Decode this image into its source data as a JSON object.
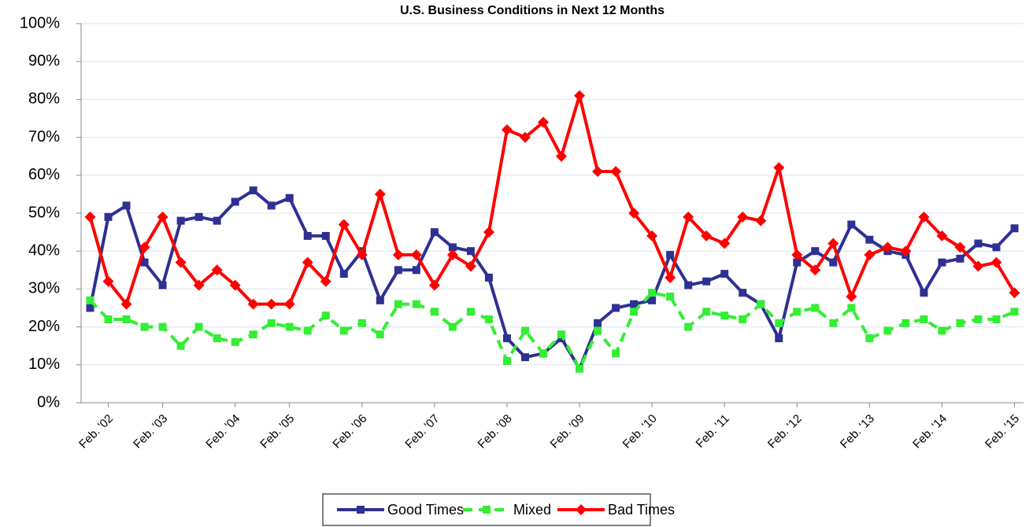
{
  "chart_data": {
    "type": "line",
    "title": "U.S. Business Conditions in Next 12 Months",
    "categories": [
      null,
      "Feb. '02",
      null,
      null,
      "Feb. '03",
      null,
      null,
      null,
      "Feb. '04",
      null,
      null,
      "Feb. '05",
      null,
      null,
      null,
      "Feb. '06",
      null,
      null,
      null,
      "Feb. '07",
      null,
      null,
      null,
      "Feb. '08",
      null,
      null,
      null,
      "Feb. '09",
      null,
      null,
      null,
      "Feb. '10",
      null,
      null,
      null,
      "Feb. '11",
      null,
      null,
      null,
      "Feb. '12",
      null,
      null,
      null,
      "Feb. '13",
      null,
      null,
      null,
      "Feb. '14",
      null,
      null,
      null,
      "Feb. '15"
    ],
    "series": [
      {
        "name": "Good Times",
        "color": "#2e3192",
        "marker": "square",
        "dashed": false,
        "values": [
          25,
          49,
          52,
          37,
          31,
          48,
          49,
          48,
          53,
          56,
          52,
          54,
          44,
          44,
          34,
          40,
          27,
          35,
          35,
          45,
          41,
          40,
          33,
          17,
          12,
          13,
          17,
          9,
          21,
          25,
          26,
          27,
          39,
          31,
          32,
          34,
          29,
          26,
          17,
          37,
          40,
          37,
          47,
          43,
          40,
          39,
          29,
          37,
          38,
          42,
          41,
          46
        ]
      },
      {
        "name": "Mixed",
        "color": "#33ee33",
        "marker": "square",
        "dashed": true,
        "values": [
          27,
          22,
          22,
          20,
          20,
          15,
          20,
          17,
          16,
          18,
          21,
          20,
          19,
          23,
          19,
          21,
          18,
          26,
          26,
          24,
          20,
          24,
          22,
          11,
          19,
          13,
          18,
          9,
          19,
          13,
          24,
          29,
          28,
          20,
          24,
          23,
          22,
          26,
          21,
          24,
          25,
          21,
          25,
          17,
          19,
          21,
          22,
          19,
          21,
          22,
          22,
          24
        ]
      },
      {
        "name": "Bad Times",
        "color": "#ff0000",
        "marker": "diamond",
        "dashed": false,
        "values": [
          49,
          32,
          26,
          41,
          49,
          37,
          31,
          35,
          31,
          26,
          26,
          26,
          37,
          32,
          47,
          39,
          55,
          39,
          39,
          31,
          39,
          36,
          45,
          72,
          70,
          74,
          65,
          81,
          61,
          61,
          50,
          44,
          33,
          49,
          44,
          42,
          49,
          48,
          62,
          39,
          35,
          42,
          28,
          39,
          41,
          40,
          49,
          44,
          41,
          36,
          37,
          29
        ]
      }
    ],
    "ylim": [
      0,
      100
    ],
    "yticks": [
      {
        "value": 0,
        "label": "0%"
      },
      {
        "value": 10,
        "label": "10%"
      },
      {
        "value": 20,
        "label": "20%"
      },
      {
        "value": 30,
        "label": "30%"
      },
      {
        "value": 40,
        "label": "40%"
      },
      {
        "value": 50,
        "label": "50%"
      },
      {
        "value": 60,
        "label": "60%"
      },
      {
        "value": 70,
        "label": "70%"
      },
      {
        "value": 80,
        "label": "80%"
      },
      {
        "value": 90,
        "label": "90%"
      },
      {
        "value": 100,
        "label": "100%"
      }
    ],
    "grid": true,
    "legend": "bottom"
  }
}
